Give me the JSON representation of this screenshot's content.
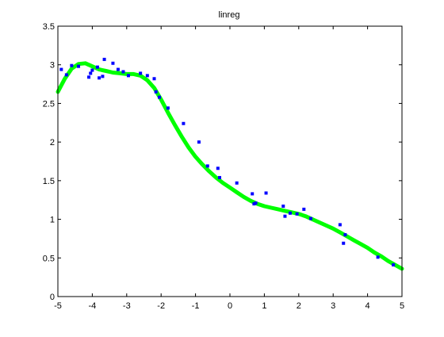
{
  "chart_data": {
    "type": "scatter",
    "title": "linreg",
    "xlabel": "",
    "ylabel": "",
    "xlim": [
      -5,
      5
    ],
    "ylim": [
      0,
      3.5
    ],
    "xticks": [
      -5,
      -4,
      -3,
      -2,
      -1,
      0,
      1,
      2,
      3,
      4,
      5
    ],
    "xtick_labels": [
      "-5",
      "-4",
      "-3",
      "-2",
      "-1",
      "0",
      "1",
      "2",
      "3",
      "4",
      "5"
    ],
    "yticks": [
      0,
      0.5,
      1,
      1.5,
      2,
      2.5,
      3,
      3.5
    ],
    "ytick_labels": [
      "0",
      "0.5",
      "1",
      "1.5",
      "2",
      "2.5",
      "3",
      "3.5"
    ],
    "grid": false,
    "legend": "none",
    "series": [
      {
        "kind": "points",
        "marker": "dot",
        "color": "#0000ff",
        "x": [
          -4.9,
          -4.75,
          -4.6,
          -4.4,
          -4.1,
          -4.05,
          -4.0,
          -3.85,
          -3.8,
          -3.7,
          -3.65,
          -3.4,
          -3.25,
          -3.1,
          -2.95,
          -2.6,
          -2.4,
          -2.2,
          -2.15,
          -2.05,
          -1.8,
          -1.35,
          -0.9,
          -0.65,
          -0.35,
          -0.3,
          0.2,
          0.65,
          0.7,
          0.75,
          1.05,
          1.55,
          1.6,
          1.75,
          1.95,
          2.15,
          2.35,
          3.2,
          3.3,
          3.35,
          4.3,
          4.75
        ],
        "y": [
          2.94,
          2.87,
          2.99,
          2.98,
          2.84,
          2.89,
          2.93,
          2.97,
          2.83,
          2.85,
          3.07,
          3.02,
          2.94,
          2.91,
          2.86,
          2.89,
          2.86,
          2.82,
          2.65,
          2.58,
          2.44,
          2.24,
          2.0,
          1.69,
          1.66,
          1.54,
          1.47,
          1.33,
          1.2,
          1.21,
          1.34,
          1.17,
          1.04,
          1.08,
          1.07,
          1.13,
          1.01,
          0.93,
          0.69,
          0.8,
          0.51,
          0.41
        ]
      },
      {
        "kind": "fit",
        "color": "#00ff00",
        "x": [
          -5.0,
          -4.8,
          -4.6,
          -4.4,
          -4.2,
          -4.0,
          -3.8,
          -3.6,
          -3.4,
          -3.2,
          -3.0,
          -2.8,
          -2.6,
          -2.4,
          -2.2,
          -2.0,
          -1.8,
          -1.6,
          -1.4,
          -1.2,
          -1.0,
          -0.8,
          -0.6,
          -0.4,
          -0.2,
          0.0,
          0.2,
          0.4,
          0.6,
          0.8,
          1.0,
          1.2,
          1.4,
          1.6,
          1.8,
          2.0,
          2.2,
          2.4,
          2.6,
          2.8,
          3.0,
          3.2,
          3.4,
          3.6,
          3.8,
          4.0,
          4.2,
          4.4,
          4.6,
          4.8,
          5.0
        ],
        "y": [
          2.65,
          2.82,
          2.95,
          3.01,
          3.02,
          2.98,
          2.94,
          2.92,
          2.9,
          2.89,
          2.88,
          2.88,
          2.86,
          2.8,
          2.7,
          2.55,
          2.38,
          2.22,
          2.07,
          1.93,
          1.81,
          1.71,
          1.62,
          1.54,
          1.47,
          1.41,
          1.35,
          1.29,
          1.24,
          1.2,
          1.17,
          1.15,
          1.13,
          1.11,
          1.09,
          1.07,
          1.04,
          1.0,
          0.96,
          0.92,
          0.88,
          0.83,
          0.78,
          0.73,
          0.68,
          0.63,
          0.57,
          0.52,
          0.46,
          0.41,
          0.36
        ]
      }
    ]
  }
}
